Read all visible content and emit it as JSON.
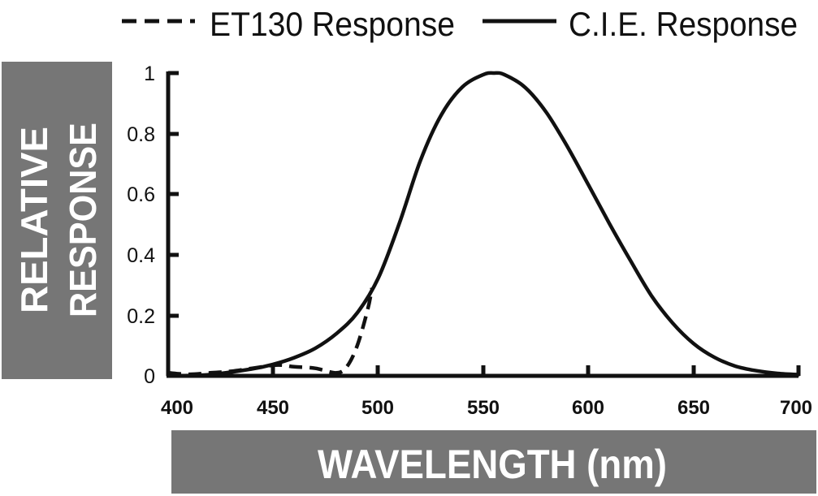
{
  "chart_data": {
    "type": "line",
    "title": "",
    "xlabel": "WAVELENGTH (nm)",
    "ylabel_lines": [
      "RELATIVE",
      "RESPONSE"
    ],
    "xlim": [
      400,
      700
    ],
    "ylim": [
      0,
      1
    ],
    "x_ticks": [
      "400",
      "450",
      "500",
      "550",
      "600",
      "650",
      "700"
    ],
    "y_ticks": [
      "0",
      "0.2",
      "0.4",
      "0.6",
      "0.8",
      "1"
    ],
    "legend_position": "top",
    "series": [
      {
        "name": "ET130 Response",
        "style": "dashed",
        "x": [
          400,
          410,
          420,
          430,
          440,
          450,
          455,
          460,
          470,
          480,
          485,
          490,
          495,
          497
        ],
        "y": [
          0.01,
          0.005,
          0.01,
          0.015,
          0.025,
          0.035,
          0.035,
          0.03,
          0.025,
          0.01,
          0.03,
          0.1,
          0.22,
          0.29
        ]
      },
      {
        "name": "C.I.E. Response",
        "style": "solid",
        "x": [
          400,
          420,
          440,
          450,
          460,
          470,
          480,
          490,
          500,
          510,
          520,
          530,
          540,
          550,
          555,
          560,
          570,
          580,
          590,
          600,
          610,
          620,
          630,
          640,
          650,
          660,
          670,
          680,
          690,
          700
        ],
        "y": [
          0.0,
          0.004,
          0.023,
          0.038,
          0.06,
          0.091,
          0.139,
          0.208,
          0.323,
          0.503,
          0.71,
          0.862,
          0.954,
          0.995,
          1.0,
          0.995,
          0.952,
          0.87,
          0.757,
          0.631,
          0.503,
          0.381,
          0.265,
          0.175,
          0.107,
          0.061,
          0.032,
          0.017,
          0.008,
          0.004
        ]
      }
    ]
  },
  "colors": {
    "line": "#111111",
    "label_background": "#767676",
    "label_text": "#ffffff"
  }
}
